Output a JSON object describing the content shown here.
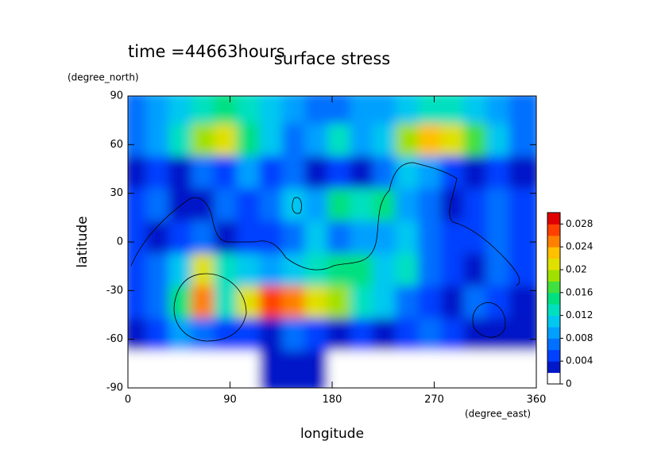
{
  "chart_data": {
    "type": "heatmap",
    "title": "surface stress",
    "subtitle": "time =44663hours",
    "x_label": "longitude",
    "x_unit": "(degree_east)",
    "y_label": "latitude",
    "y_unit": "(degree_north)",
    "xlim": [
      0,
      360
    ],
    "xticks": [
      0,
      90,
      180,
      270,
      360
    ],
    "ylim": [
      -90,
      90
    ],
    "yticks": [
      -90,
      -60,
      -30,
      0,
      30,
      60,
      90
    ],
    "x": [
      10,
      30,
      50,
      70,
      90,
      110,
      130,
      150,
      170,
      190,
      210,
      230,
      250,
      270,
      290,
      310,
      330,
      350
    ],
    "y": [
      80,
      60,
      40,
      20,
      0,
      -20,
      -40,
      -60,
      -80
    ],
    "z": [
      [
        0.006,
        0.008,
        0.01,
        0.012,
        0.014,
        0.012,
        0.01,
        0.008,
        0.006,
        0.006,
        0.008,
        0.008,
        0.01,
        0.012,
        0.012,
        0.01,
        0.008,
        0.006
      ],
      [
        0.006,
        0.008,
        0.012,
        0.018,
        0.02,
        0.014,
        0.01,
        0.006,
        0.008,
        0.012,
        0.008,
        0.01,
        0.018,
        0.022,
        0.02,
        0.016,
        0.01,
        0.006
      ],
      [
        0.002,
        0.004,
        0.002,
        0.006,
        0.004,
        0.008,
        0.004,
        0.006,
        0.002,
        0.004,
        0.003,
        0.006,
        0.01,
        0.008,
        0.004,
        0.002,
        0.004,
        0.003
      ],
      [
        0.004,
        0.006,
        0.003,
        0.002,
        0.006,
        0.004,
        0.006,
        0.01,
        0.008,
        0.014,
        0.012,
        0.014,
        0.008,
        0.006,
        0.003,
        0.004,
        0.006,
        0.004
      ],
      [
        0.004,
        0.003,
        0.004,
        0.006,
        0.003,
        0.004,
        0.005,
        0.006,
        0.01,
        0.006,
        0.008,
        0.008,
        0.01,
        0.006,
        0.005,
        0.004,
        0.006,
        0.004
      ],
      [
        0.004,
        0.006,
        0.01,
        0.02,
        0.012,
        0.01,
        0.008,
        0.01,
        0.012,
        0.014,
        0.014,
        0.01,
        0.012,
        0.006,
        0.004,
        0.003,
        0.006,
        0.004
      ],
      [
        0.004,
        0.006,
        0.014,
        0.024,
        0.012,
        0.02,
        0.026,
        0.024,
        0.02,
        0.018,
        0.012,
        0.01,
        0.006,
        0.004,
        0.003,
        0.006,
        0.004,
        0.002
      ],
      [
        0.002,
        0.004,
        0.008,
        0.006,
        0.004,
        0.004,
        0.003,
        0.006,
        0.004,
        0.003,
        0.004,
        0.002,
        0.004,
        0.006,
        0.004,
        0.002,
        0.003,
        0.002
      ],
      [
        0,
        0,
        0,
        0,
        0.001,
        0.001,
        0.002,
        0.002,
        0.003,
        0.001,
        0,
        0,
        0,
        0,
        0,
        0,
        0,
        0
      ]
    ],
    "colors": [
      "#ffffff",
      "#0018c8",
      "#0040ff",
      "#0070ff",
      "#00a0ff",
      "#00c8f0",
      "#00e0c0",
      "#00e080",
      "#40e040",
      "#a0e000",
      "#e0e000",
      "#ffc000",
      "#ff8000",
      "#ff4000",
      "#e00000"
    ],
    "clim": [
      0,
      0.03
    ],
    "cticks": [
      0,
      0.004,
      0.008,
      0.012,
      0.016,
      0.02,
      0.024,
      0.028
    ]
  }
}
